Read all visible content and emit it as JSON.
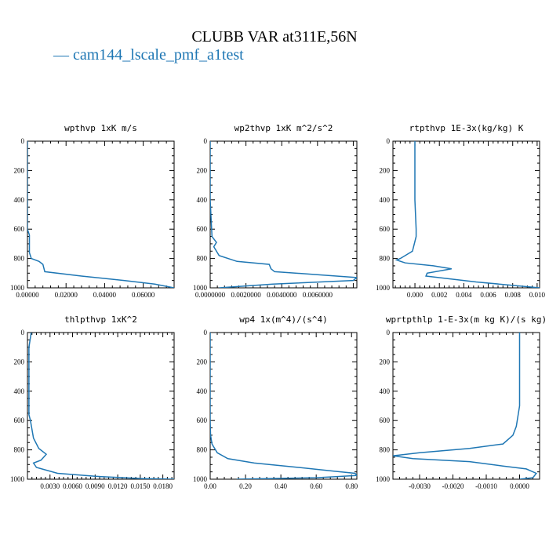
{
  "figure": {
    "title": "CLUBB VAR at311E,56N",
    "legend_label": "— cam144_lscale_pmf_a1test",
    "series_color": "#1f77b4"
  },
  "chart_data": [
    {
      "type": "line",
      "title": "wpthvp   1xK m/s",
      "xlim": [
        0,
        0.076
      ],
      "ylim": [
        1000,
        0
      ],
      "xticks": [
        0,
        0.02,
        0.04,
        0.06
      ],
      "xtick_labels": [
        "0.00000",
        "0.02000",
        "0.04000",
        "0.06000"
      ],
      "yticks": [
        0,
        200,
        400,
        600,
        800,
        1000
      ],
      "ytick_labels": [
        "0",
        "200",
        "400",
        "600",
        "800",
        "1000"
      ],
      "series": [
        {
          "x": [
            0.0,
            0.0,
            0.0,
            0.001,
            0.001,
            0.002,
            0.006,
            0.008,
            0.009,
            0.028,
            0.05,
            0.066,
            0.076
          ],
          "y": [
            0,
            400,
            600,
            640,
            760,
            800,
            820,
            840,
            890,
            920,
            950,
            975,
            1000
          ]
        }
      ]
    },
    {
      "type": "line",
      "title": "wp2thvp   1xK m^2/s^2",
      "xlim": [
        0,
        0.0082
      ],
      "ylim": [
        1000,
        0
      ],
      "xticks": [
        0,
        0.002,
        0.004,
        0.006
      ],
      "xtick_labels": [
        "0.0000000",
        "0.0020000",
        "0.0040000",
        "0.0060000"
      ],
      "yticks": [
        0,
        200,
        400,
        600,
        800,
        1000
      ],
      "ytick_labels": [
        "0",
        "200",
        "400",
        "600",
        "800",
        "1000"
      ],
      "series": [
        {
          "x": [
            0.0,
            0.0,
            0.0001,
            0.00035,
            0.0002,
            0.0005,
            0.0015,
            0.0033,
            0.0034,
            0.0036,
            0.006,
            0.0082,
            0.008,
            0.0035,
            0.0005
          ],
          "y": [
            0,
            400,
            650,
            690,
            720,
            780,
            820,
            840,
            870,
            890,
            910,
            930,
            950,
            975,
            1000
          ]
        }
      ]
    },
    {
      "type": "line",
      "title": "rtpthvp   1E-3x(kg/kg) K",
      "xlim": [
        -0.0018,
        0.0102
      ],
      "ylim": [
        1000,
        0
      ],
      "xticks": [
        0,
        0.002,
        0.004,
        0.006,
        0.008,
        0.01
      ],
      "xtick_labels": [
        "0.000",
        "0.002",
        "0.004",
        "0.006",
        "0.008",
        "0.010"
      ],
      "yticks": [
        0,
        200,
        400,
        600,
        800,
        1000
      ],
      "ytick_labels": [
        "0",
        "200",
        "400",
        "600",
        "800",
        "1000"
      ],
      "series": [
        {
          "x": [
            0.0,
            0.0,
            0.0001,
            0.0001,
            -0.0002,
            -0.0012,
            -0.0015,
            -0.0008,
            0.0015,
            0.003,
            0.001,
            0.0009,
            0.005,
            0.0102
          ],
          "y": [
            0,
            400,
            600,
            650,
            750,
            800,
            810,
            830,
            850,
            870,
            900,
            920,
            960,
            1000
          ]
        }
      ]
    },
    {
      "type": "line",
      "title": "thlpthvp   1xK^2",
      "xlim": [
        0,
        0.0195
      ],
      "ylim": [
        1000,
        0
      ],
      "xticks": [
        0.003,
        0.006,
        0.009,
        0.012,
        0.015,
        0.018
      ],
      "xtick_labels": [
        "0.0030",
        "0.0060",
        "0.0090",
        "0.0120",
        "0.0150",
        "0.0180"
      ],
      "yticks": [
        0,
        200,
        400,
        600,
        800,
        1000
      ],
      "ytick_labels": [
        "0",
        "200",
        "400",
        "600",
        "800",
        "1000"
      ],
      "series": [
        {
          "x": [
            0.0005,
            0.0002,
            0.0002,
            0.0002,
            0.0002,
            0.0004,
            0.0008,
            0.0015,
            0.0025,
            0.0018,
            0.0008,
            0.0012,
            0.004,
            0.009,
            0.015,
            0.0195
          ],
          "y": [
            0,
            100,
            200,
            500,
            560,
            600,
            720,
            790,
            830,
            870,
            890,
            920,
            960,
            980,
            995,
            1000
          ]
        }
      ]
    },
    {
      "type": "line",
      "title": "wp4   1x(m^4)/(s^4)",
      "xlim": [
        0,
        0.83
      ],
      "ylim": [
        1000,
        0
      ],
      "xticks": [
        0,
        0.2,
        0.4,
        0.6,
        0.8
      ],
      "xtick_labels": [
        "0.00",
        "0.20",
        "0.40",
        "0.60",
        "0.80"
      ],
      "yticks": [
        0,
        200,
        400,
        600,
        800,
        1000
      ],
      "ytick_labels": [
        "0",
        "200",
        "400",
        "600",
        "800",
        "1000"
      ],
      "series": [
        {
          "x": [
            0.0,
            0.0,
            0.002,
            0.01,
            0.04,
            0.1,
            0.25,
            0.5,
            0.7,
            0.82,
            0.83,
            0.6,
            0.15
          ],
          "y": [
            0,
            600,
            700,
            760,
            820,
            860,
            890,
            920,
            945,
            960,
            975,
            990,
            1000
          ]
        }
      ]
    },
    {
      "type": "line",
      "title": "wprtpthlp   1-E-3x(m kg K)/(s kg)",
      "xlim": [
        -0.0038,
        0.0006
      ],
      "ylim": [
        1000,
        0
      ],
      "xticks": [
        -0.003,
        -0.002,
        -0.001,
        0
      ],
      "xtick_labels": [
        "-0.0030",
        "-0.0020",
        "-0.0010",
        "0.0000"
      ],
      "yticks": [
        0,
        200,
        400,
        600,
        800,
        1000
      ],
      "ytick_labels": [
        "0",
        "200",
        "400",
        "600",
        "800",
        "1000"
      ],
      "series": [
        {
          "x": [
            0.0,
            0.0,
            -0.0001,
            -0.0002,
            -0.0005,
            -0.0015,
            -0.003,
            -0.0038,
            -0.0032,
            -0.0015,
            -0.0005,
            0.0002,
            0.0005,
            0.0004,
            0.0
          ],
          "y": [
            0,
            500,
            640,
            700,
            760,
            790,
            820,
            840,
            860,
            880,
            910,
            930,
            960,
            990,
            1000
          ]
        }
      ]
    }
  ]
}
